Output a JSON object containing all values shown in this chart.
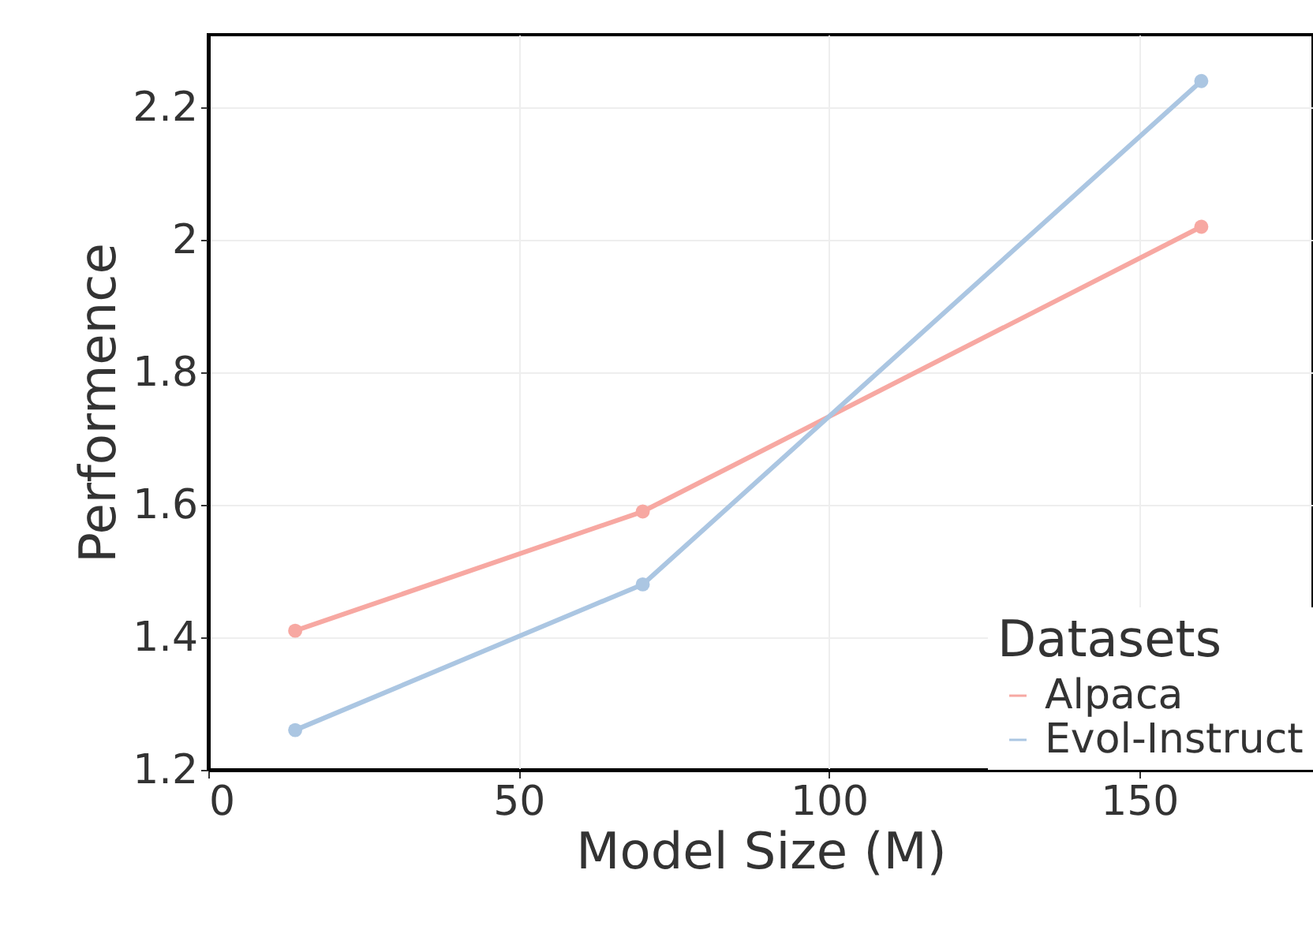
{
  "chart_data": {
    "type": "line",
    "xlabel": "Model Size (M)",
    "ylabel": "Performence",
    "legend_title": "Datasets",
    "x": [
      14,
      70,
      160
    ],
    "series": [
      {
        "name": "Alpaca",
        "color": "#f7a8a2",
        "values": [
          1.41,
          1.59,
          2.02
        ]
      },
      {
        "name": "Evol-Instruct",
        "color": "#abc6e2",
        "values": [
          1.26,
          1.48,
          2.24
        ]
      }
    ],
    "xlim": [
      0,
      178
    ],
    "xticks": [
      0,
      50,
      100,
      150
    ],
    "ylim": [
      1.2,
      2.31
    ],
    "yticks": [
      1.2,
      1.4,
      1.6,
      1.8,
      2,
      2.2
    ],
    "grid": true,
    "legend": "bottom right",
    "marker": "circle",
    "line_style": "solid"
  }
}
